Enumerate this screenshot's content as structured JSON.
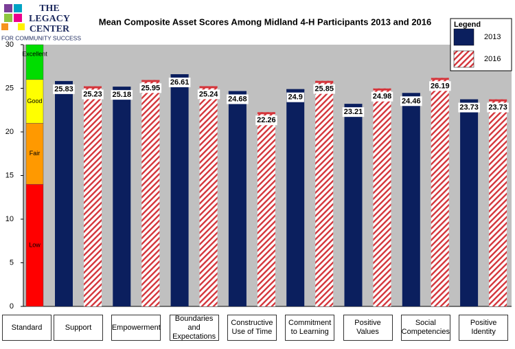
{
  "logo": {
    "lines": [
      "THE",
      "LEGACY",
      "CENTER"
    ],
    "tagline": "FOR COMMUNITY SUCCESS"
  },
  "chart_data": {
    "type": "bar",
    "title": "Mean Composite Asset Scores Among Midland 4-H Participants 2013 and 2016",
    "categories": [
      "Standard",
      "Support",
      "Empowerment",
      "Boundaries and Expectations",
      "Constructive Use of Time",
      "Commitment to Learning",
      "Positive Values",
      "Social Competencies",
      "Positive Identity"
    ],
    "standard": {
      "names": [
        "Low",
        "Fair",
        "Good",
        "Excellent"
      ],
      "values": [
        14,
        7,
        5,
        4
      ],
      "colors": [
        "#ff0000",
        "#ff9900",
        "#ffff00",
        "#00dd00"
      ]
    },
    "series": [
      {
        "name": "2013",
        "color": "#0b1f5e",
        "hatch": false,
        "values": [
          null,
          25.83,
          25.18,
          26.61,
          24.68,
          24.9,
          23.21,
          24.46,
          23.73
        ]
      },
      {
        "name": "2016",
        "color": "#d4343a",
        "hatch": true,
        "values": [
          null,
          25.23,
          25.95,
          25.24,
          22.26,
          25.85,
          24.98,
          26.19,
          23.73
        ]
      }
    ],
    "legend_title": "Legend",
    "ylim": [
      0,
      30
    ],
    "yticks": [
      0,
      5,
      10,
      15,
      20,
      25,
      30
    ],
    "grid": false
  }
}
